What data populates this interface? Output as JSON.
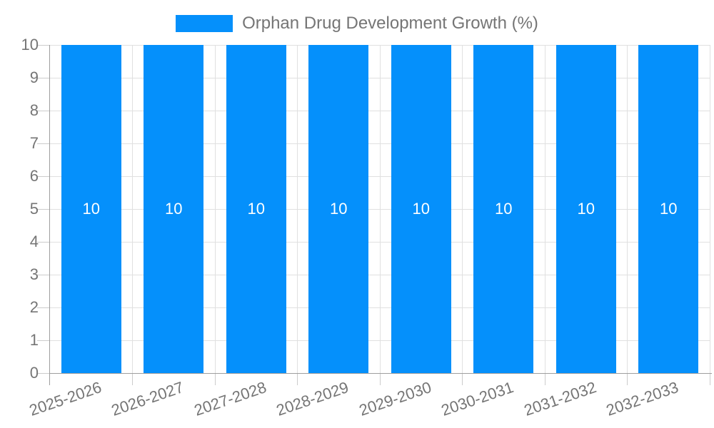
{
  "legend": {
    "label": "Orphan Drug Development Growth (%)"
  },
  "chart_data": {
    "type": "bar",
    "title": "Orphan Drug Development Growth (%)",
    "categories": [
      "2025-2026",
      "2026-2027",
      "2027-2028",
      "2028-2029",
      "2029-2030",
      "2030-2031",
      "2031-2032",
      "2032-2033"
    ],
    "values": [
      10,
      10,
      10,
      10,
      10,
      10,
      10,
      10
    ],
    "value_labels": [
      "10",
      "10",
      "10",
      "10",
      "10",
      "10",
      "10",
      "10"
    ],
    "ylim": [
      0,
      10
    ],
    "yticks": [
      0,
      1,
      2,
      3,
      4,
      5,
      6,
      7,
      8,
      9,
      10
    ],
    "ytick_labels": [
      "0",
      "1",
      "2",
      "3",
      "4",
      "5",
      "6",
      "7",
      "8",
      "9",
      "10"
    ],
    "grid": true,
    "legend_position": "top",
    "x_label_rotation_deg": -19
  },
  "colors": {
    "bar": "#0590fb",
    "grid": "#e0e0e0",
    "axis": "#9e9e9e",
    "tick": "#cccccc",
    "tick_text": "#757575",
    "legend_text": "#757575",
    "bar_label_text": "#ffffff"
  }
}
